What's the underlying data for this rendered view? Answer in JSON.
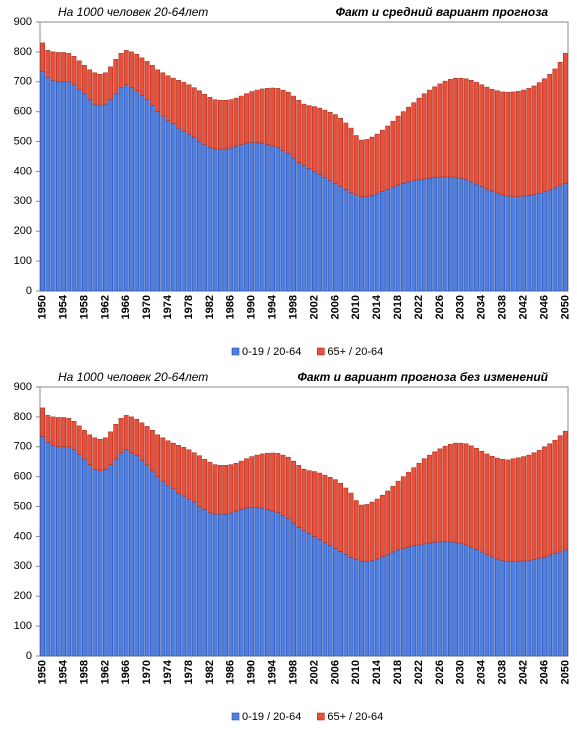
{
  "chart_data": [
    {
      "type": "bar",
      "stacked": true,
      "subtitle": "На 1000 человек 20-64лет",
      "title": "Факт и средний вариант прогноза",
      "categories": [
        1950,
        null,
        null,
        null,
        1954,
        null,
        null,
        null,
        1958,
        null,
        null,
        null,
        1962,
        null,
        null,
        null,
        1966,
        null,
        null,
        null,
        1970,
        null,
        null,
        null,
        1974,
        null,
        null,
        null,
        1978,
        null,
        null,
        null,
        1982,
        null,
        null,
        null,
        1986,
        null,
        null,
        null,
        1990,
        null,
        null,
        null,
        1994,
        null,
        null,
        null,
        1998,
        null,
        null,
        null,
        2002,
        null,
        null,
        null,
        2006,
        null,
        null,
        null,
        2010,
        null,
        null,
        null,
        2014,
        null,
        null,
        null,
        2018,
        null,
        null,
        null,
        2022,
        null,
        null,
        null,
        2026,
        null,
        null,
        null,
        2030,
        null,
        null,
        null,
        2034,
        null,
        null,
        null,
        2038,
        null,
        null,
        null,
        2042,
        null,
        null,
        null,
        2046,
        null,
        null,
        null,
        2050
      ],
      "series": [
        {
          "name": "0-19 / 20-64",
          "color": "#4f7fe0",
          "values": [
            735,
            715,
            705,
            700,
            700,
            700,
            690,
            675,
            660,
            640,
            625,
            620,
            625,
            640,
            660,
            680,
            690,
            680,
            670,
            655,
            640,
            620,
            600,
            585,
            570,
            560,
            545,
            535,
            525,
            515,
            500,
            490,
            480,
            475,
            475,
            475,
            478,
            485,
            490,
            495,
            497,
            497,
            495,
            490,
            485,
            480,
            470,
            460,
            445,
            430,
            420,
            410,
            400,
            390,
            380,
            370,
            360,
            350,
            340,
            330,
            322,
            316,
            316,
            320,
            325,
            333,
            340,
            348,
            355,
            360,
            365,
            370,
            372,
            375,
            378,
            380,
            382,
            382,
            382,
            380,
            377,
            372,
            365,
            358,
            350,
            342,
            335,
            328,
            322,
            318,
            316,
            316,
            318,
            320,
            323,
            327,
            332,
            338,
            345,
            352,
            360
          ]
        },
        {
          "name": "65+ / 20-64",
          "color": "#e8503c",
          "values": [
            95,
            90,
            95,
            98,
            98,
            95,
            95,
            95,
            95,
            100,
            105,
            105,
            105,
            110,
            115,
            115,
            115,
            120,
            122,
            125,
            128,
            135,
            140,
            145,
            150,
            152,
            160,
            163,
            165,
            165,
            170,
            168,
            168,
            165,
            163,
            163,
            162,
            160,
            162,
            165,
            170,
            175,
            181,
            188,
            194,
            198,
            202,
            205,
            207,
            208,
            205,
            210,
            217,
            222,
            225,
            228,
            230,
            228,
            222,
            215,
            198,
            189,
            191,
            195,
            200,
            205,
            212,
            220,
            230,
            240,
            250,
            260,
            273,
            285,
            294,
            303,
            311,
            320,
            326,
            332,
            335,
            338,
            340,
            340,
            340,
            340,
            340,
            342,
            344,
            347,
            350,
            352,
            354,
            358,
            363,
            370,
            378,
            387,
            398,
            413,
            435
          ]
        }
      ],
      "ylim": [
        0,
        900
      ],
      "yticks": [
        0,
        100,
        200,
        300,
        400,
        500,
        600,
        700,
        800,
        900
      ],
      "grid": false,
      "legend": "bottom"
    },
    {
      "type": "bar",
      "stacked": true,
      "subtitle": "На 1000 человек 20-64лет",
      "title": "Факт и вариант прогноза без изменений",
      "categories": [
        1950,
        null,
        null,
        null,
        1954,
        null,
        null,
        null,
        1958,
        null,
        null,
        null,
        1962,
        null,
        null,
        null,
        1966,
        null,
        null,
        null,
        1970,
        null,
        null,
        null,
        1974,
        null,
        null,
        null,
        1978,
        null,
        null,
        null,
        1982,
        null,
        null,
        null,
        1986,
        null,
        null,
        null,
        1990,
        null,
        null,
        null,
        1994,
        null,
        null,
        null,
        1998,
        null,
        null,
        null,
        2002,
        null,
        null,
        null,
        2006,
        null,
        null,
        null,
        2010,
        null,
        null,
        null,
        2014,
        null,
        null,
        null,
        2018,
        null,
        null,
        null,
        2022,
        null,
        null,
        null,
        2026,
        null,
        null,
        null,
        2030,
        null,
        null,
        null,
        2034,
        null,
        null,
        null,
        2038,
        null,
        null,
        null,
        2042,
        null,
        null,
        null,
        2046,
        null,
        null,
        null,
        2050
      ],
      "series": [
        {
          "name": "0-19 / 20-64",
          "color": "#4f7fe0",
          "values": [
            735,
            715,
            705,
            700,
            700,
            700,
            690,
            675,
            660,
            640,
            625,
            620,
            625,
            640,
            660,
            680,
            690,
            680,
            670,
            655,
            640,
            620,
            600,
            585,
            570,
            560,
            545,
            535,
            525,
            515,
            500,
            490,
            480,
            475,
            475,
            475,
            478,
            485,
            490,
            495,
            497,
            497,
            495,
            490,
            485,
            480,
            470,
            460,
            445,
            430,
            420,
            410,
            400,
            390,
            380,
            370,
            360,
            350,
            340,
            330,
            322,
            316,
            316,
            320,
            325,
            333,
            340,
            348,
            355,
            360,
            365,
            370,
            372,
            375,
            378,
            380,
            382,
            382,
            382,
            380,
            377,
            372,
            365,
            357,
            348,
            340,
            332,
            325,
            320,
            317,
            316,
            316,
            318,
            320,
            323,
            327,
            332,
            338,
            343,
            348,
            355
          ]
        },
        {
          "name": "65+ / 20-64",
          "color": "#e8503c",
          "values": [
            95,
            90,
            95,
            98,
            98,
            95,
            95,
            95,
            95,
            100,
            105,
            105,
            105,
            110,
            115,
            115,
            115,
            120,
            122,
            125,
            128,
            135,
            140,
            145,
            150,
            152,
            160,
            163,
            165,
            165,
            170,
            168,
            168,
            165,
            163,
            163,
            162,
            160,
            162,
            165,
            170,
            175,
            181,
            188,
            194,
            198,
            202,
            205,
            207,
            208,
            205,
            210,
            217,
            222,
            225,
            228,
            230,
            228,
            222,
            215,
            198,
            189,
            191,
            195,
            200,
            205,
            212,
            220,
            230,
            240,
            250,
            260,
            273,
            285,
            294,
            303,
            311,
            320,
            326,
            332,
            335,
            338,
            338,
            338,
            337,
            336,
            336,
            337,
            338,
            339,
            344,
            347,
            349,
            352,
            357,
            361,
            368,
            372,
            379,
            389,
            397
          ]
        }
      ],
      "ylim": [
        0,
        900
      ],
      "yticks": [
        0,
        100,
        200,
        300,
        400,
        500,
        600,
        700,
        800,
        900
      ],
      "grid": false,
      "legend": "bottom"
    }
  ]
}
